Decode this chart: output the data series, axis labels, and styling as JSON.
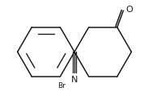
{
  "bg_color": "#ffffff",
  "line_color": "#1a1a1a",
  "lw": 1.1,
  "fs": 6.5,
  "O_label": "O",
  "N_label": "N",
  "Br_label": "Br"
}
